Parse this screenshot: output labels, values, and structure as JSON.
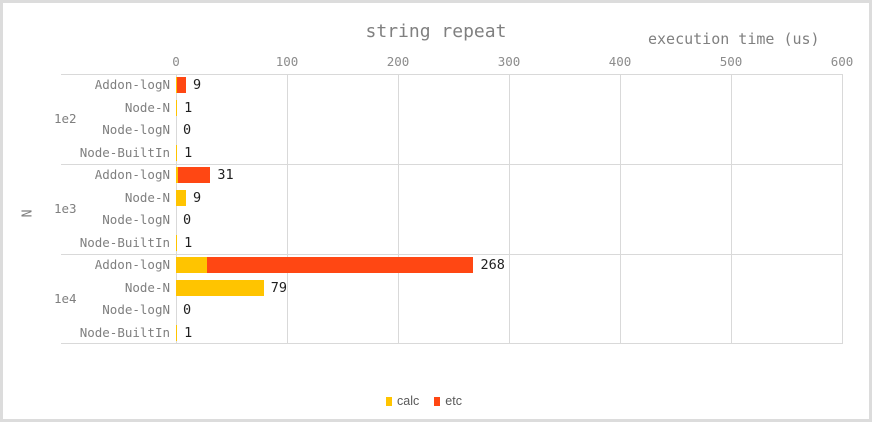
{
  "chart_data": {
    "type": "bar",
    "orientation": "horizontal",
    "stacked": true,
    "title": "string repeat",
    "x_axis_title": "execution time (us)",
    "y_axis_label": "N",
    "xlim": [
      0,
      600
    ],
    "xticks": [
      0,
      100,
      200,
      300,
      400,
      500,
      600
    ],
    "gridlines": true,
    "legend_position": "bottom-center",
    "legend": [
      {
        "name": "calc",
        "color": "#FFC400"
      },
      {
        "name": "etc",
        "color": "#FF4713"
      }
    ],
    "groups": [
      {
        "label": "1e2",
        "rows": [
          {
            "category": "Addon-logN",
            "calc": 1,
            "etc": 8,
            "label": "9"
          },
          {
            "category": "Node-N",
            "calc": 1,
            "etc": 0,
            "label": "1"
          },
          {
            "category": "Node-logN",
            "calc": 0,
            "etc": 0,
            "label": "0"
          },
          {
            "category": "Node-BuiltIn",
            "calc": 1,
            "etc": 0,
            "label": "1"
          }
        ]
      },
      {
        "label": "1e3",
        "rows": [
          {
            "category": "Addon-logN",
            "calc": 2,
            "etc": 29,
            "label": "31"
          },
          {
            "category": "Node-N",
            "calc": 9,
            "etc": 0,
            "label": "9"
          },
          {
            "category": "Node-logN",
            "calc": 0,
            "etc": 0,
            "label": "0"
          },
          {
            "category": "Node-BuiltIn",
            "calc": 1,
            "etc": 0,
            "label": "1"
          }
        ]
      },
      {
        "label": "1e4",
        "rows": [
          {
            "category": "Addon-logN",
            "calc": 28,
            "etc": 240,
            "label": "268"
          },
          {
            "category": "Node-N",
            "calc": 79,
            "etc": 0,
            "label": "79"
          },
          {
            "category": "Node-logN",
            "calc": 0,
            "etc": 0,
            "label": "0"
          },
          {
            "category": "Node-BuiltIn",
            "calc": 1,
            "etc": 0,
            "label": "1"
          }
        ]
      }
    ]
  }
}
